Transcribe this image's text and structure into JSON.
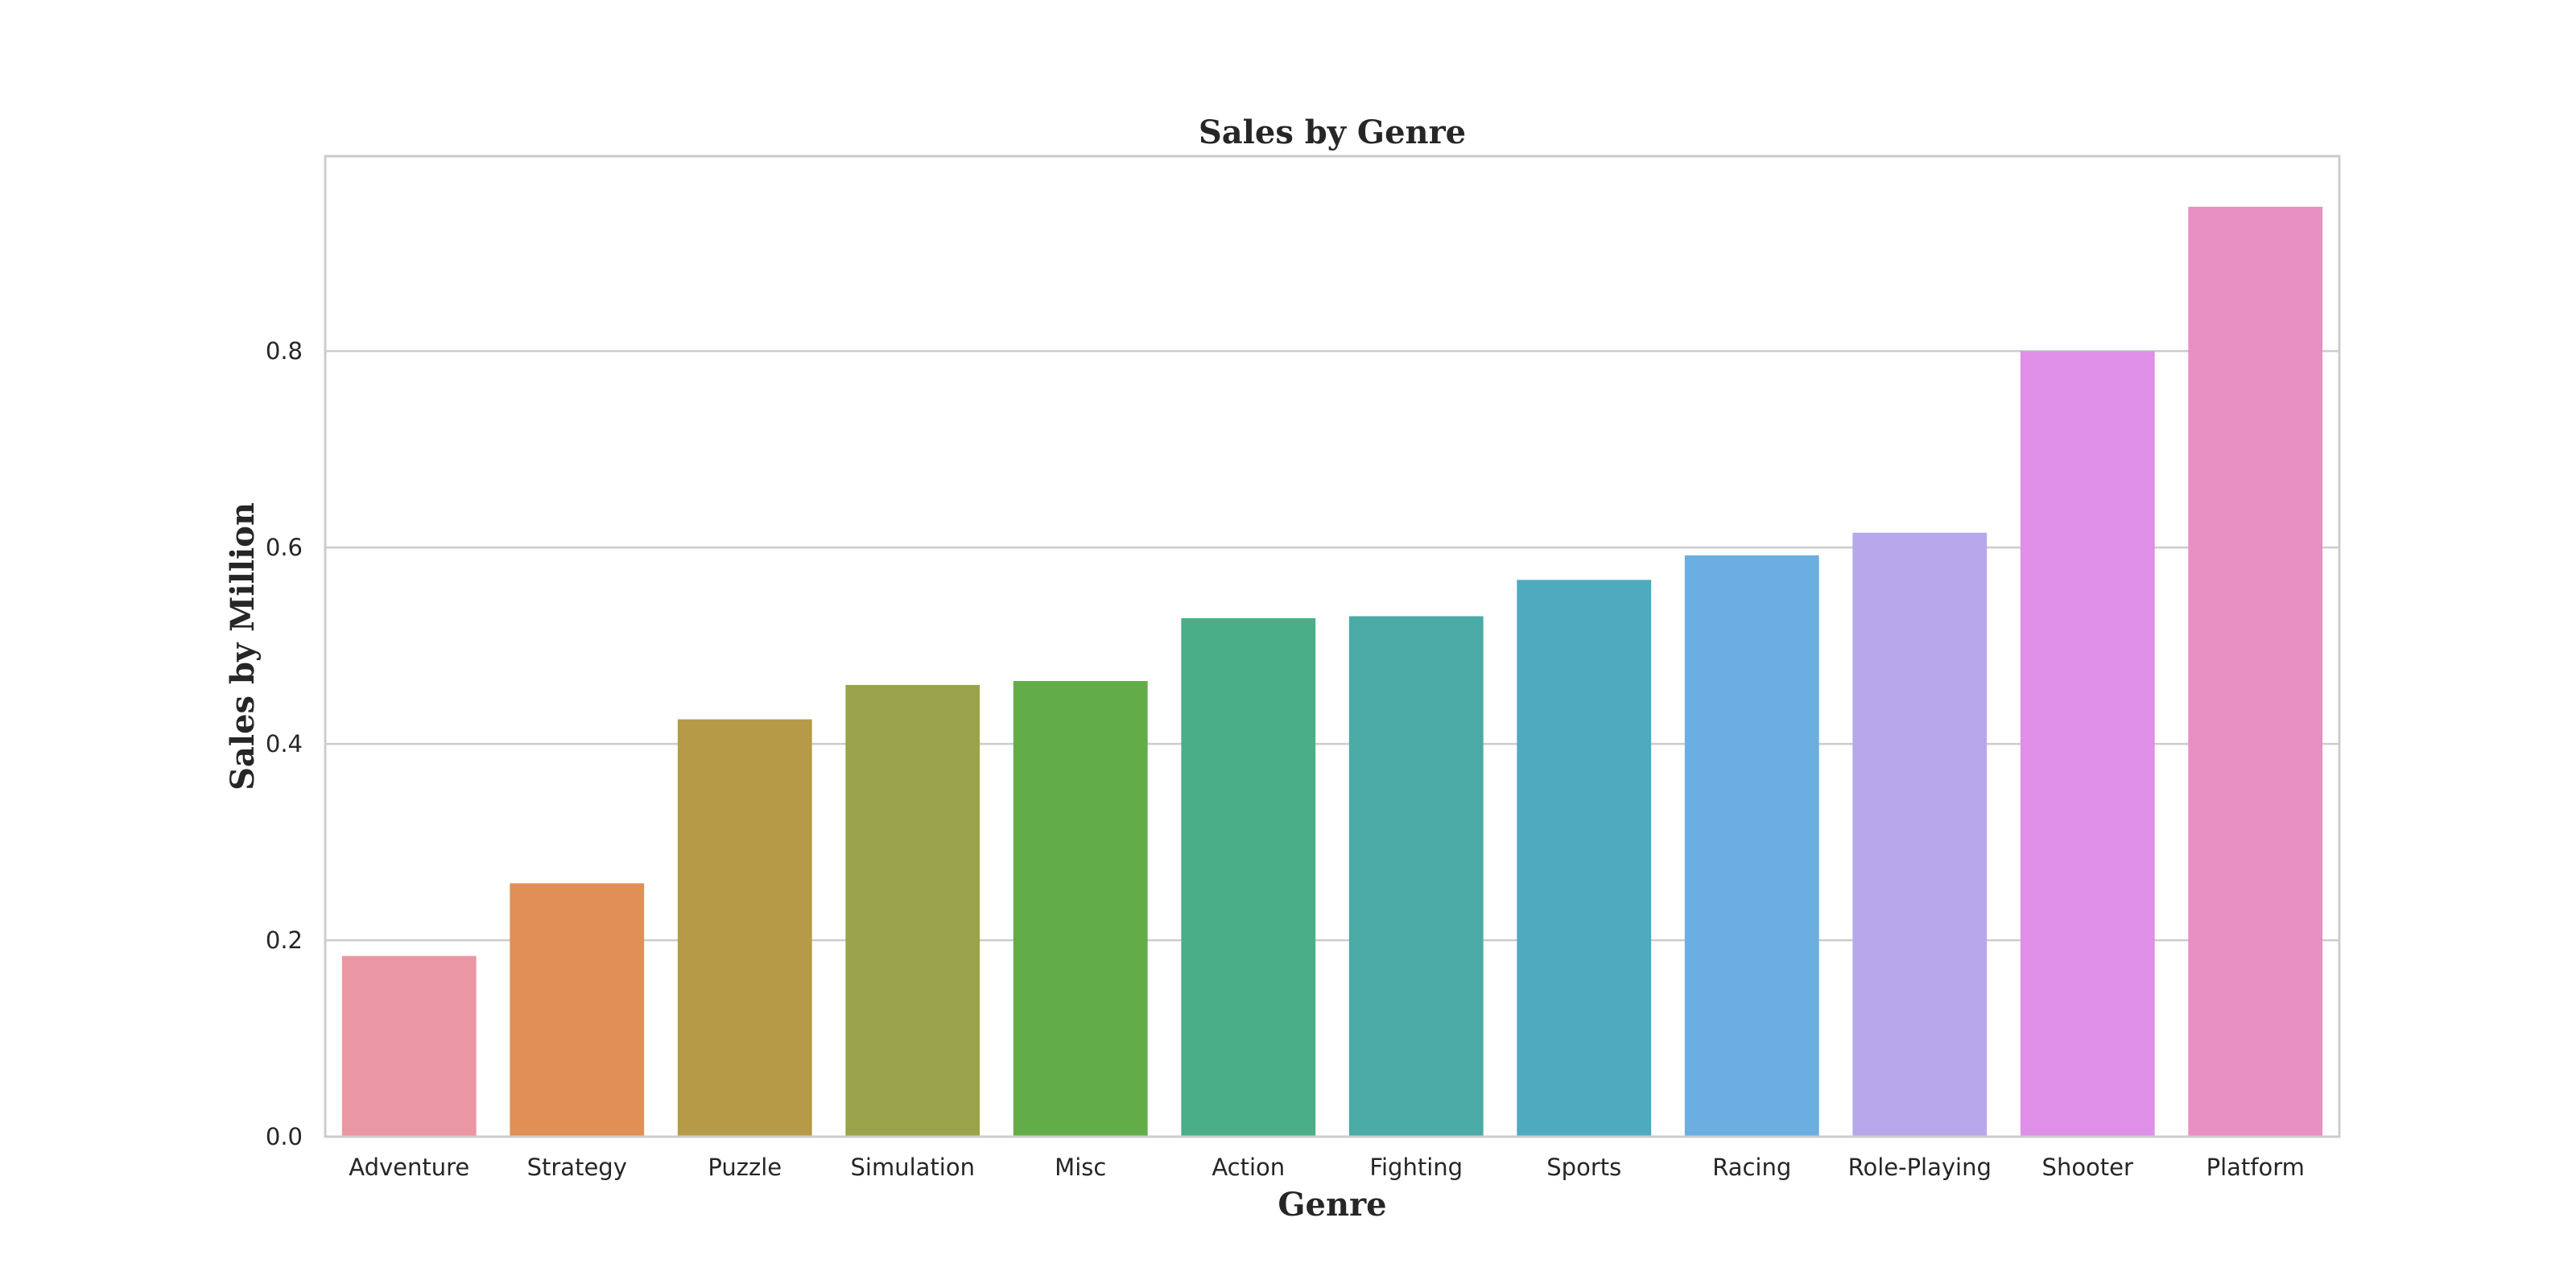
{
  "chart_data": {
    "type": "bar",
    "title": "Sales by Genre",
    "xlabel": "Genre",
    "ylabel": "Sales by Million",
    "categories": [
      "Adventure",
      "Strategy",
      "Puzzle",
      "Simulation",
      "Misc",
      "Action",
      "Fighting",
      "Sports",
      "Racing",
      "Role-Playing",
      "Shooter",
      "Platform"
    ],
    "values": [
      0.184,
      0.258,
      0.425,
      0.46,
      0.464,
      0.528,
      0.53,
      0.567,
      0.592,
      0.615,
      0.8,
      0.947
    ],
    "colors": [
      "#ea96a3",
      "#e18f55",
      "#b69a48",
      "#99a44a",
      "#62ad48",
      "#4aae86",
      "#4aaaa6",
      "#4eaabf",
      "#6aaee2",
      "#b7a8ec",
      "#df8fe7",
      "#e88fc3"
    ],
    "ylim": [
      0,
      0.9985
    ],
    "yticks": [
      "0.0",
      "0.2",
      "0.4",
      "0.6",
      "0.8"
    ],
    "ytick_values": [
      0,
      0.2,
      0.4,
      0.6,
      0.8
    ],
    "grid": true,
    "style": {
      "grid_color": "#cccccc",
      "spine_color": "#cccccc",
      "text_color": "#262626"
    }
  }
}
